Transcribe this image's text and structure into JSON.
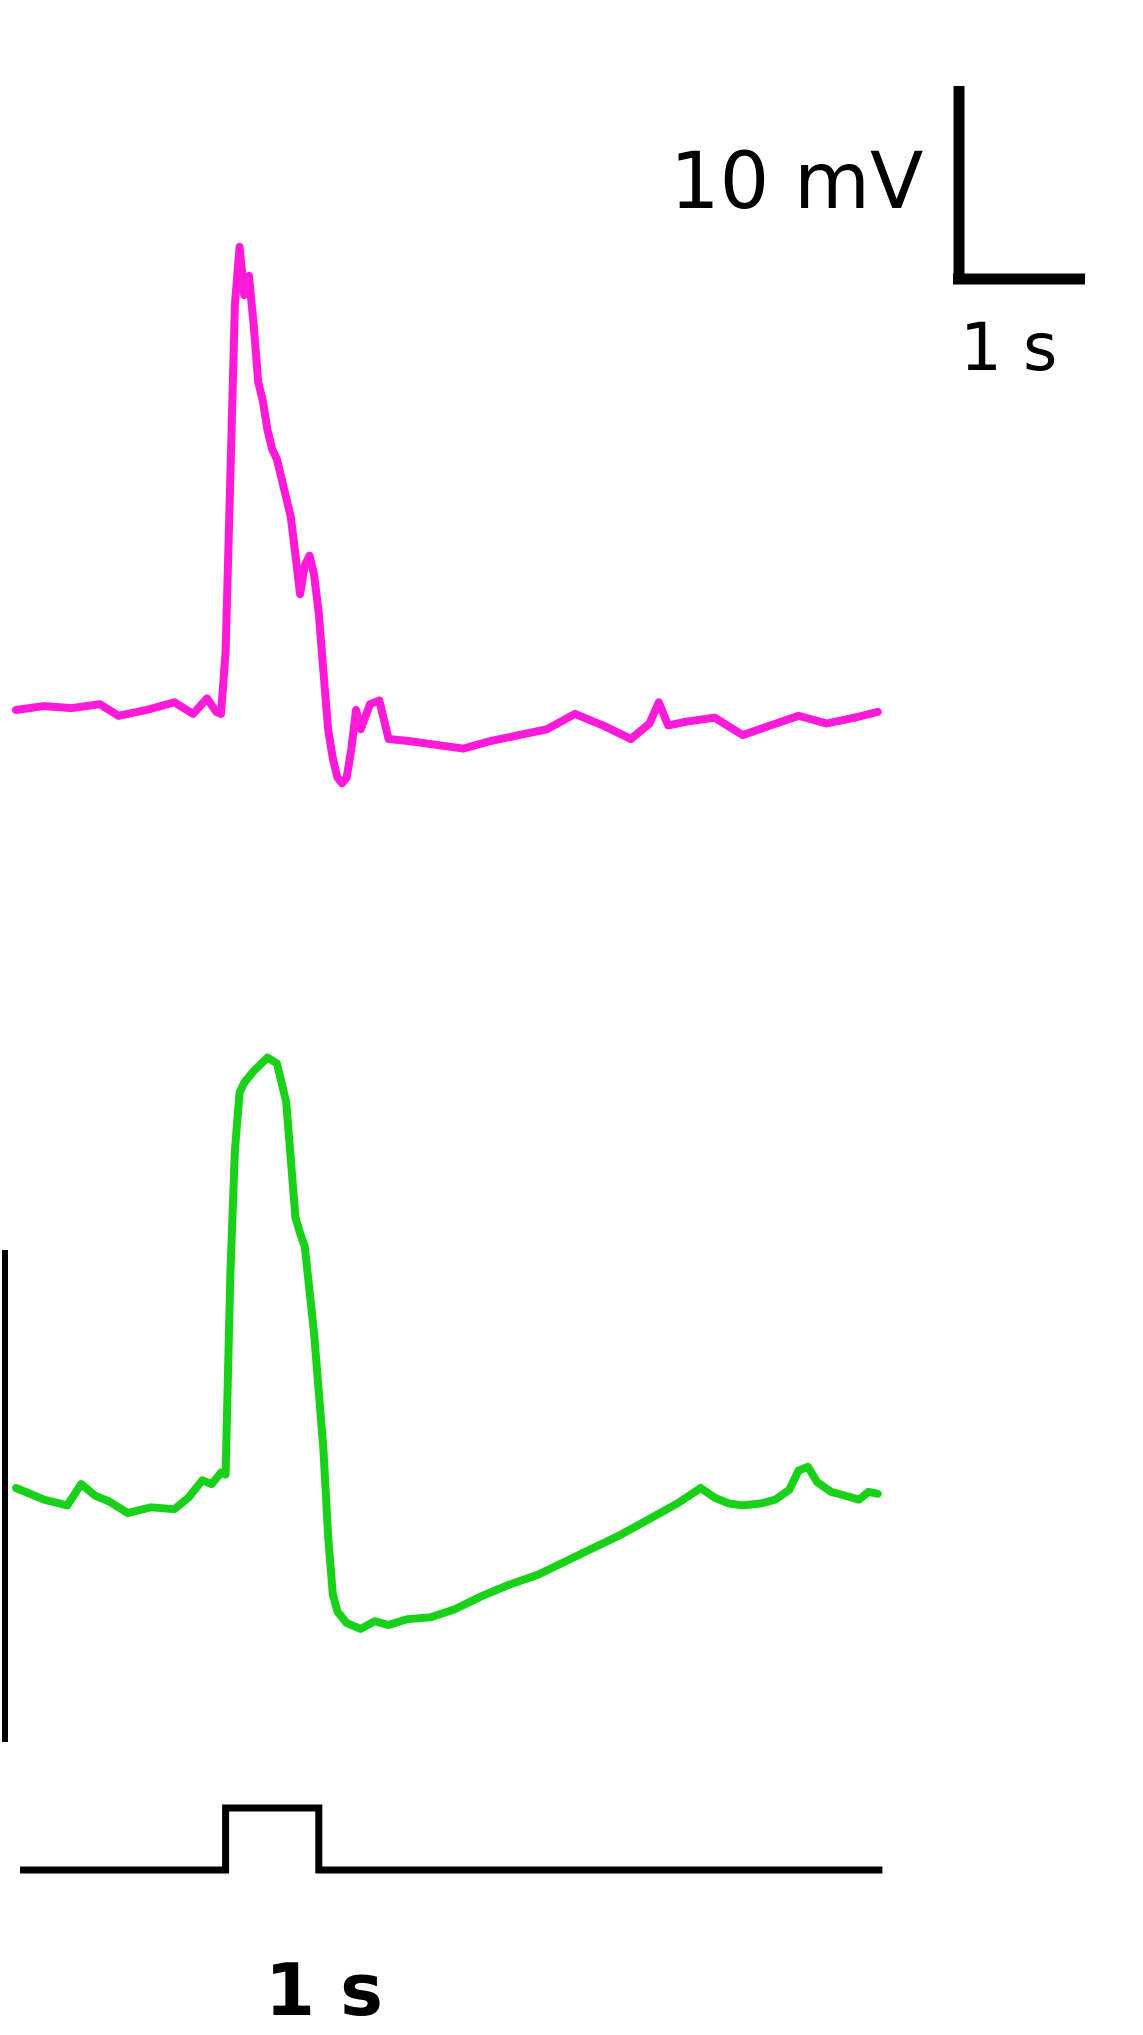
{
  "chart_data": {
    "type": "line",
    "title": "",
    "xlabel": "",
    "ylabel": "",
    "scale_bar": {
      "voltage_label": "10 mV",
      "voltage_value": 10,
      "time_label": "1 s",
      "time_value": 1
    },
    "stimulus": {
      "label": "1 s",
      "onset_s": 2.25,
      "duration_s": 1.0,
      "total_s": 9.3
    },
    "colors": {
      "trace_a": "#ff1ad9",
      "trace_b": "#1ad11a",
      "ink": "#000000"
    },
    "series": [
      {
        "color": "#ff1ad9",
        "points": [
          [
            0.0,
            0.0
          ],
          [
            0.3,
            0.2
          ],
          [
            0.6,
            0.1
          ],
          [
            0.9,
            0.3
          ],
          [
            1.1,
            -0.3
          ],
          [
            1.4,
            0.0
          ],
          [
            1.7,
            0.4
          ],
          [
            1.9,
            -0.2
          ],
          [
            2.05,
            0.6
          ],
          [
            2.15,
            -0.1
          ],
          [
            2.2,
            -0.2
          ],
          [
            2.25,
            3.0
          ],
          [
            2.3,
            12.0
          ],
          [
            2.35,
            21.0
          ],
          [
            2.4,
            24.0
          ],
          [
            2.45,
            21.5
          ],
          [
            2.5,
            22.5
          ],
          [
            2.55,
            20.0
          ],
          [
            2.6,
            17.0
          ],
          [
            2.65,
            16.0
          ],
          [
            2.7,
            14.5
          ],
          [
            2.75,
            13.5
          ],
          [
            2.8,
            13.0
          ],
          [
            2.85,
            12.0
          ],
          [
            2.9,
            11.0
          ],
          [
            2.95,
            10.0
          ],
          [
            3.0,
            8.0
          ],
          [
            3.05,
            6.0
          ],
          [
            3.1,
            7.5
          ],
          [
            3.15,
            8.0
          ],
          [
            3.2,
            7.0
          ],
          [
            3.25,
            5.0
          ],
          [
            3.3,
            2.0
          ],
          [
            3.35,
            -1.0
          ],
          [
            3.4,
            -2.5
          ],
          [
            3.45,
            -3.5
          ],
          [
            3.5,
            -3.8
          ],
          [
            3.55,
            -3.5
          ],
          [
            3.6,
            -2.0
          ],
          [
            3.65,
            0.0
          ],
          [
            3.7,
            -1.0
          ],
          [
            3.8,
            0.3
          ],
          [
            3.9,
            0.5
          ],
          [
            4.0,
            -1.5
          ],
          [
            4.2,
            -1.6
          ],
          [
            4.5,
            -1.8
          ],
          [
            4.8,
            -2.0
          ],
          [
            5.1,
            -1.6
          ],
          [
            5.4,
            -1.3
          ],
          [
            5.7,
            -1.0
          ],
          [
            6.0,
            -0.2
          ],
          [
            6.3,
            -0.8
          ],
          [
            6.6,
            -1.5
          ],
          [
            6.8,
            -0.7
          ],
          [
            6.9,
            0.4
          ],
          [
            7.0,
            -0.8
          ],
          [
            7.2,
            -0.6
          ],
          [
            7.5,
            -0.4
          ],
          [
            7.8,
            -1.3
          ],
          [
            8.1,
            -0.8
          ],
          [
            8.4,
            -0.3
          ],
          [
            8.7,
            -0.7
          ],
          [
            9.0,
            -0.4
          ],
          [
            9.25,
            -0.1
          ]
        ]
      },
      {
        "color": "#1ad11a",
        "points": [
          [
            0.0,
            0.0
          ],
          [
            0.3,
            -0.6
          ],
          [
            0.55,
            -0.9
          ],
          [
            0.7,
            0.2
          ],
          [
            0.85,
            -0.4
          ],
          [
            1.0,
            -0.7
          ],
          [
            1.2,
            -1.3
          ],
          [
            1.45,
            -1.0
          ],
          [
            1.7,
            -1.1
          ],
          [
            1.85,
            -0.5
          ],
          [
            2.0,
            0.4
          ],
          [
            2.1,
            0.2
          ],
          [
            2.2,
            0.8
          ],
          [
            2.25,
            0.7
          ],
          [
            2.3,
            11.0
          ],
          [
            2.35,
            17.5
          ],
          [
            2.4,
            20.5
          ],
          [
            2.45,
            21.0
          ],
          [
            2.55,
            21.6
          ],
          [
            2.7,
            22.3
          ],
          [
            2.8,
            22.0
          ],
          [
            2.9,
            20.0
          ],
          [
            3.0,
            14.0
          ],
          [
            3.05,
            13.2
          ],
          [
            3.1,
            12.5
          ],
          [
            3.2,
            8.0
          ],
          [
            3.3,
            2.0
          ],
          [
            3.35,
            -2.5
          ],
          [
            3.4,
            -5.5
          ],
          [
            3.45,
            -6.4
          ],
          [
            3.55,
            -7.0
          ],
          [
            3.7,
            -7.3
          ],
          [
            3.85,
            -6.9
          ],
          [
            4.0,
            -7.1
          ],
          [
            4.2,
            -6.8
          ],
          [
            4.45,
            -6.7
          ],
          [
            4.7,
            -6.3
          ],
          [
            5.0,
            -5.6
          ],
          [
            5.3,
            -5.0
          ],
          [
            5.6,
            -4.5
          ],
          [
            5.9,
            -3.8
          ],
          [
            6.2,
            -3.1
          ],
          [
            6.5,
            -2.4
          ],
          [
            6.8,
            -1.6
          ],
          [
            7.1,
            -0.8
          ],
          [
            7.35,
            0.0
          ],
          [
            7.5,
            -0.5
          ],
          [
            7.65,
            -0.8
          ],
          [
            7.8,
            -0.9
          ],
          [
            8.0,
            -0.8
          ],
          [
            8.15,
            -0.6
          ],
          [
            8.3,
            -0.1
          ],
          [
            8.4,
            0.9
          ],
          [
            8.5,
            1.1
          ],
          [
            8.6,
            0.3
          ],
          [
            8.75,
            -0.2
          ],
          [
            8.9,
            -0.4
          ],
          [
            9.05,
            -0.6
          ],
          [
            9.15,
            -0.2
          ],
          [
            9.25,
            -0.3
          ]
        ]
      }
    ]
  }
}
